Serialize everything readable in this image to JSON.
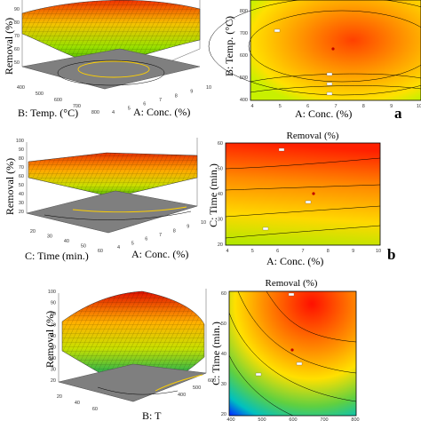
{
  "chart_data": [
    {
      "type": "surface",
      "panel": "a",
      "zlabel": "Removal (%)",
      "xlabel": "A: Conc. (%)",
      "ylabel": "B: Temp. (°C)",
      "x_ticks": [
        "4",
        "5",
        "6",
        "7",
        "8",
        "9",
        "10"
      ],
      "y_ticks": [
        "400",
        "500",
        "600",
        "700",
        "800"
      ],
      "z_ticks": [
        "50",
        "60",
        "70",
        "80",
        "90"
      ],
      "x_range": [
        4,
        10
      ],
      "y_range": [
        400,
        800
      ]
    },
    {
      "type": "contour",
      "panel": "a",
      "title": "",
      "xlabel": "A: Conc. (%)",
      "ylabel": "B: Temp. (°C)",
      "x_ticks": [
        "4",
        "5",
        "6",
        "7",
        "8",
        "9",
        "10"
      ],
      "y_ticks": [
        "400",
        "500",
        "600",
        "700",
        "800"
      ],
      "x_range": [
        4,
        10
      ],
      "y_range": [
        400,
        800
      ]
    },
    {
      "type": "surface",
      "panel": "b",
      "zlabel": "Removal (%)",
      "xlabel": "A: Conc. (%)",
      "ylabel": "C: Time (min.)",
      "x_ticks": [
        "4",
        "5",
        "6",
        "7",
        "8",
        "9",
        "10"
      ],
      "y_ticks": [
        "20",
        "30",
        "40",
        "50",
        "60"
      ],
      "z_ticks": [
        "20",
        "30",
        "40",
        "50",
        "60",
        "70",
        "80",
        "90",
        "100"
      ],
      "x_range": [
        4,
        10
      ],
      "y_range": [
        20,
        60
      ],
      "z_range": [
        20,
        100
      ]
    },
    {
      "type": "contour",
      "panel": "b",
      "title": "Removal (%)",
      "xlabel": "A: Conc. (%)",
      "ylabel": "C: Time (min.)",
      "x_ticks": [
        "4",
        "5",
        "6",
        "7",
        "8",
        "9",
        "10"
      ],
      "y_ticks": [
        "20",
        "30",
        "40",
        "50",
        "60"
      ],
      "x_range": [
        4,
        10
      ],
      "y_range": [
        20,
        60
      ]
    },
    {
      "type": "surface",
      "panel": "c",
      "zlabel": "Removal (%)",
      "xlabel": "B: T",
      "ylabel": "",
      "x_ticks": [
        "400",
        "500",
        "600"
      ],
      "y_ticks": [
        "20",
        "40",
        "60"
      ],
      "z_ticks": [
        "20",
        "30",
        "40",
        "50",
        "60",
        "70",
        "80",
        "90",
        "100"
      ],
      "z_range": [
        20,
        100
      ]
    },
    {
      "type": "contour",
      "panel": "c",
      "title": "Removal (%)",
      "xlabel": "",
      "ylabel": "C: Time (min.)",
      "x_ticks": [
        "400",
        "500",
        "600",
        "700",
        "800"
      ],
      "y_ticks": [
        "20",
        "30",
        "40",
        "50",
        "60"
      ],
      "x_range": [
        400,
        800
      ],
      "y_range": [
        20,
        60
      ]
    }
  ],
  "panel_labels": [
    "a",
    "b"
  ],
  "colors": {
    "high": "#ff0000",
    "mid": "#ffff00",
    "low": "#00b050",
    "lowest": "#0000ff",
    "floor": "#7f7f7f"
  }
}
